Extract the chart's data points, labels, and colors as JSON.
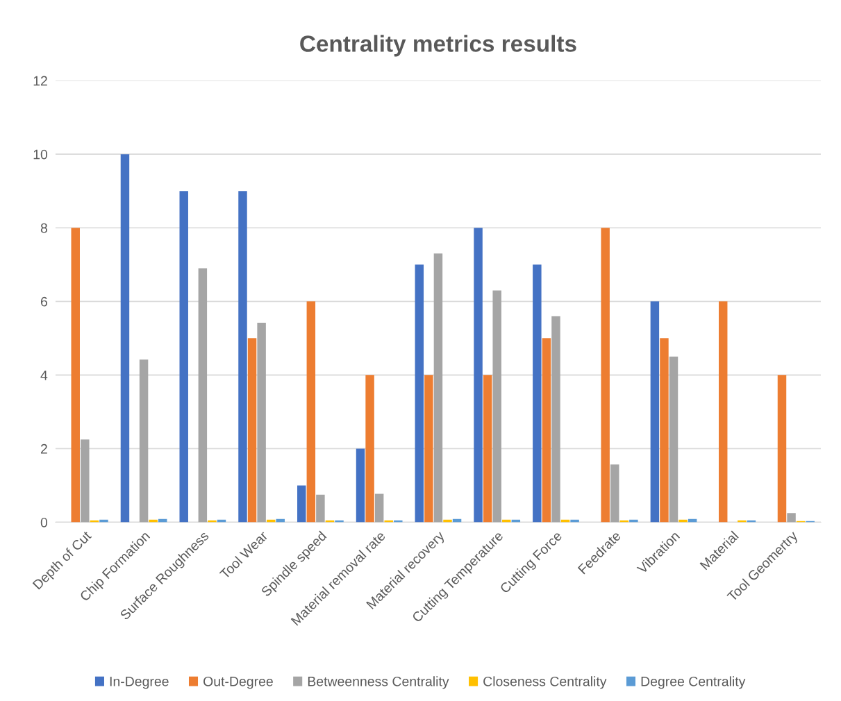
{
  "chart_data": {
    "type": "bar",
    "title": "Centrality metrics results",
    "categories": [
      "Depth of Cut",
      "Chip Formation",
      "Surface Roughness",
      "Tool Wear",
      "Spindle speed",
      "Material removal rate",
      "Material recovery",
      "Cutting Temperature",
      "Cutting Force",
      "Feedrate",
      "Vibration",
      "Material",
      "Tool Geomertry"
    ],
    "series": [
      {
        "name": "In-Degree",
        "color": "#4472c4",
        "values": [
          0,
          10,
          9,
          9,
          1,
          2,
          7,
          8,
          7,
          0,
          6,
          0,
          0
        ]
      },
      {
        "name": "Out-Degree",
        "color": "#ed7d31",
        "values": [
          8,
          0,
          0,
          5,
          6,
          4,
          4,
          4,
          5,
          8,
          5,
          6,
          4
        ]
      },
      {
        "name": "Betweenness Centrality",
        "color": "#a5a5a5",
        "values": [
          2.25,
          4.42,
          6.9,
          5.42,
          0.75,
          0.77,
          7.3,
          6.3,
          5.6,
          1.57,
          4.5,
          0,
          0.25
        ]
      },
      {
        "name": "Closeness Centrality",
        "color": "#ffc000",
        "values": [
          0.05,
          0.07,
          0.05,
          0.07,
          0.05,
          0.05,
          0.07,
          0.07,
          0.07,
          0.05,
          0.07,
          0.05,
          0.03
        ]
      },
      {
        "name": "Degree Centrality",
        "color": "#5b9bd5",
        "values": [
          0.07,
          0.09,
          0.07,
          0.09,
          0.05,
          0.05,
          0.09,
          0.07,
          0.07,
          0.07,
          0.09,
          0.05,
          0.03
        ]
      }
    ],
    "ylim": [
      0,
      12
    ],
    "yticks": [
      0,
      2,
      4,
      6,
      8,
      10,
      12
    ],
    "grid": "y",
    "legend": "bottom"
  }
}
